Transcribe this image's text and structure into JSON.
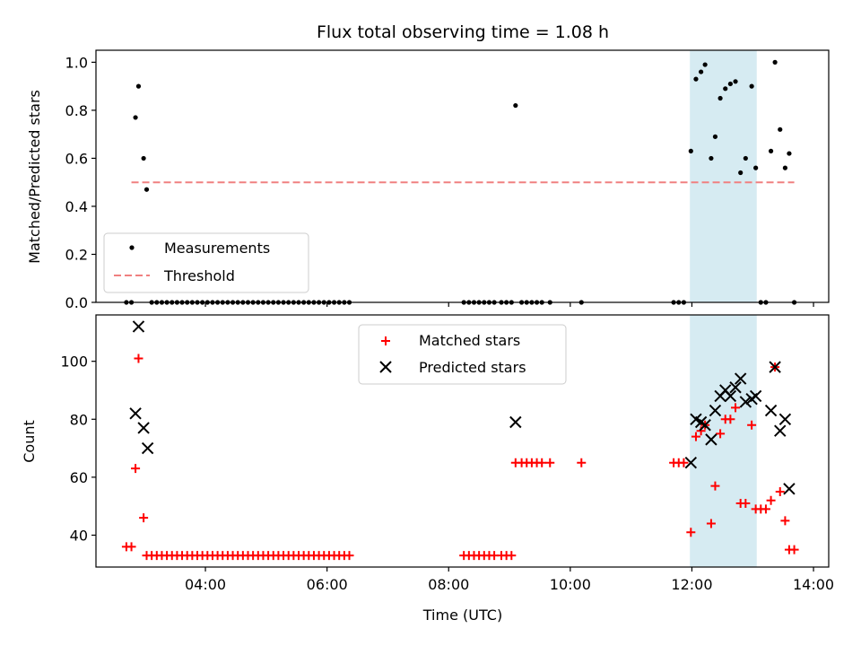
{
  "chart_data": [
    {
      "type": "scatter",
      "title": "Flux total observing time = 1.08 h",
      "xlabel": "",
      "ylabel": "Matched/Predicted stars",
      "xlim": [
        "02:12",
        "14:15"
      ],
      "ylim": [
        0,
        1.05
      ],
      "yticks": [
        "0.0",
        "0.2",
        "0.4",
        "0.6",
        "0.8",
        "1.0"
      ],
      "grid": false,
      "legend": "bottom-left",
      "highlight_span": [
        "11:58",
        "13:04"
      ],
      "highlight_color": "#add8e6",
      "series": [
        {
          "name": "Measurements",
          "marker": "dot",
          "color": "#000000",
          "x": [
            "02:42",
            "02:47",
            "02:51",
            "02:54",
            "02:59",
            "03:02",
            "03:07",
            "03:12",
            "03:17",
            "03:22",
            "03:27",
            "03:32",
            "03:37",
            "03:42",
            "03:47",
            "03:52",
            "03:57",
            "04:02",
            "04:07",
            "04:12",
            "04:17",
            "04:22",
            "04:27",
            "04:32",
            "04:37",
            "04:42",
            "04:47",
            "04:52",
            "04:57",
            "05:02",
            "05:07",
            "05:12",
            "05:17",
            "05:22",
            "05:27",
            "05:32",
            "05:37",
            "05:42",
            "05:47",
            "05:52",
            "05:57",
            "06:02",
            "06:07",
            "06:12",
            "06:17",
            "06:22",
            "08:15",
            "08:20",
            "08:25",
            "08:30",
            "08:35",
            "08:40",
            "08:45",
            "08:52",
            "08:57",
            "09:02",
            "09:06",
            "09:12",
            "09:17",
            "09:22",
            "09:27",
            "09:32",
            "09:40",
            "10:11",
            "11:42",
            "11:47",
            "11:52",
            "11:59",
            "12:04",
            "12:09",
            "12:13",
            "12:19",
            "12:23",
            "12:28",
            "12:33",
            "12:38",
            "12:43",
            "12:48",
            "12:53",
            "12:59",
            "13:03",
            "13:08",
            "13:13",
            "13:18",
            "13:22",
            "13:27",
            "13:32",
            "13:36",
            "13:41"
          ],
          "y": [
            0,
            0,
            0.77,
            0.9,
            0.6,
            0.47,
            0,
            0,
            0,
            0,
            0,
            0,
            0,
            0,
            0,
            0,
            0,
            0,
            0,
            0,
            0,
            0,
            0,
            0,
            0,
            0,
            0,
            0,
            0,
            0,
            0,
            0,
            0,
            0,
            0,
            0,
            0,
            0,
            0,
            0,
            0,
            0,
            0,
            0,
            0,
            0,
            0,
            0,
            0,
            0,
            0,
            0,
            0,
            0,
            0,
            0,
            0.82,
            0,
            0,
            0,
            0,
            0,
            0,
            0,
            0,
            0,
            0,
            0.63,
            0.93,
            0.96,
            0.99,
            0.6,
            0.69,
            0.85,
            0.89,
            0.91,
            0.92,
            0.54,
            0.6,
            0.9,
            0.56,
            0,
            0,
            0.63,
            1.0,
            0.72,
            0.56,
            0.62,
            0
          ]
        },
        {
          "name": "Threshold",
          "marker": "dashed-line",
          "color": "#f08080",
          "x": [
            "02:47",
            "13:41"
          ],
          "y": [
            0.5,
            0.5
          ]
        }
      ]
    },
    {
      "type": "scatter",
      "xlabel": "Time (UTC)",
      "ylabel": "Count",
      "xlim": [
        "02:12",
        "14:15"
      ],
      "ylim": [
        29,
        116
      ],
      "xticks": [
        "04:00",
        "06:00",
        "08:00",
        "10:00",
        "12:00",
        "14:00"
      ],
      "yticks": [
        "40",
        "60",
        "80",
        "100"
      ],
      "grid": false,
      "legend": "top-center",
      "highlight_span": [
        "11:58",
        "13:04"
      ],
      "highlight_color": "#add8e6",
      "series": [
        {
          "name": "Matched stars",
          "marker": "plus",
          "color": "#ff0000",
          "x": [
            "02:42",
            "02:47",
            "02:51",
            "02:54",
            "02:59",
            "03:02",
            "03:07",
            "03:12",
            "03:17",
            "03:22",
            "03:27",
            "03:32",
            "03:37",
            "03:42",
            "03:47",
            "03:52",
            "03:57",
            "04:02",
            "04:07",
            "04:12",
            "04:17",
            "04:22",
            "04:27",
            "04:32",
            "04:37",
            "04:42",
            "04:47",
            "04:52",
            "04:57",
            "05:02",
            "05:07",
            "05:12",
            "05:17",
            "05:22",
            "05:27",
            "05:32",
            "05:37",
            "05:42",
            "05:47",
            "05:52",
            "05:57",
            "06:02",
            "06:07",
            "06:12",
            "06:17",
            "06:22",
            "08:15",
            "08:20",
            "08:25",
            "08:30",
            "08:35",
            "08:40",
            "08:45",
            "08:52",
            "08:57",
            "09:02",
            "09:06",
            "09:12",
            "09:17",
            "09:22",
            "09:27",
            "09:32",
            "09:40",
            "10:11",
            "11:42",
            "11:47",
            "11:52",
            "11:59",
            "12:04",
            "12:09",
            "12:13",
            "12:19",
            "12:23",
            "12:28",
            "12:33",
            "12:38",
            "12:43",
            "12:48",
            "12:53",
            "12:59",
            "13:03",
            "13:08",
            "13:13",
            "13:18",
            "13:22",
            "13:27",
            "13:32",
            "13:36",
            "13:41"
          ],
          "y": [
            36,
            36,
            63,
            101,
            46,
            33,
            33,
            33,
            33,
            33,
            33,
            33,
            33,
            33,
            33,
            33,
            33,
            33,
            33,
            33,
            33,
            33,
            33,
            33,
            33,
            33,
            33,
            33,
            33,
            33,
            33,
            33,
            33,
            33,
            33,
            33,
            33,
            33,
            33,
            33,
            33,
            33,
            33,
            33,
            33,
            33,
            33,
            33,
            33,
            33,
            33,
            33,
            33,
            33,
            33,
            33,
            65,
            65,
            65,
            65,
            65,
            65,
            65,
            65,
            65,
            65,
            65,
            41,
            74,
            76,
            78,
            44,
            57,
            75,
            80,
            80,
            84,
            51,
            51,
            78,
            49,
            49,
            49,
            52,
            98,
            55,
            45,
            35,
            35
          ]
        },
        {
          "name": "Predicted stars",
          "marker": "x",
          "color": "#000000",
          "x": [
            "02:51",
            "02:54",
            "02:59",
            "03:03",
            "09:06",
            "11:59",
            "12:04",
            "12:09",
            "12:13",
            "12:19",
            "12:23",
            "12:28",
            "12:33",
            "12:38",
            "12:43",
            "12:48",
            "12:53",
            "12:59",
            "13:03",
            "13:18",
            "13:22",
            "13:27",
            "13:32",
            "13:36"
          ],
          "y": [
            82,
            112,
            77,
            70,
            79,
            65,
            80,
            79,
            78,
            73,
            83,
            88,
            90,
            88,
            91,
            94,
            86,
            87,
            88,
            83,
            98,
            76,
            80,
            56
          ]
        }
      ]
    }
  ]
}
